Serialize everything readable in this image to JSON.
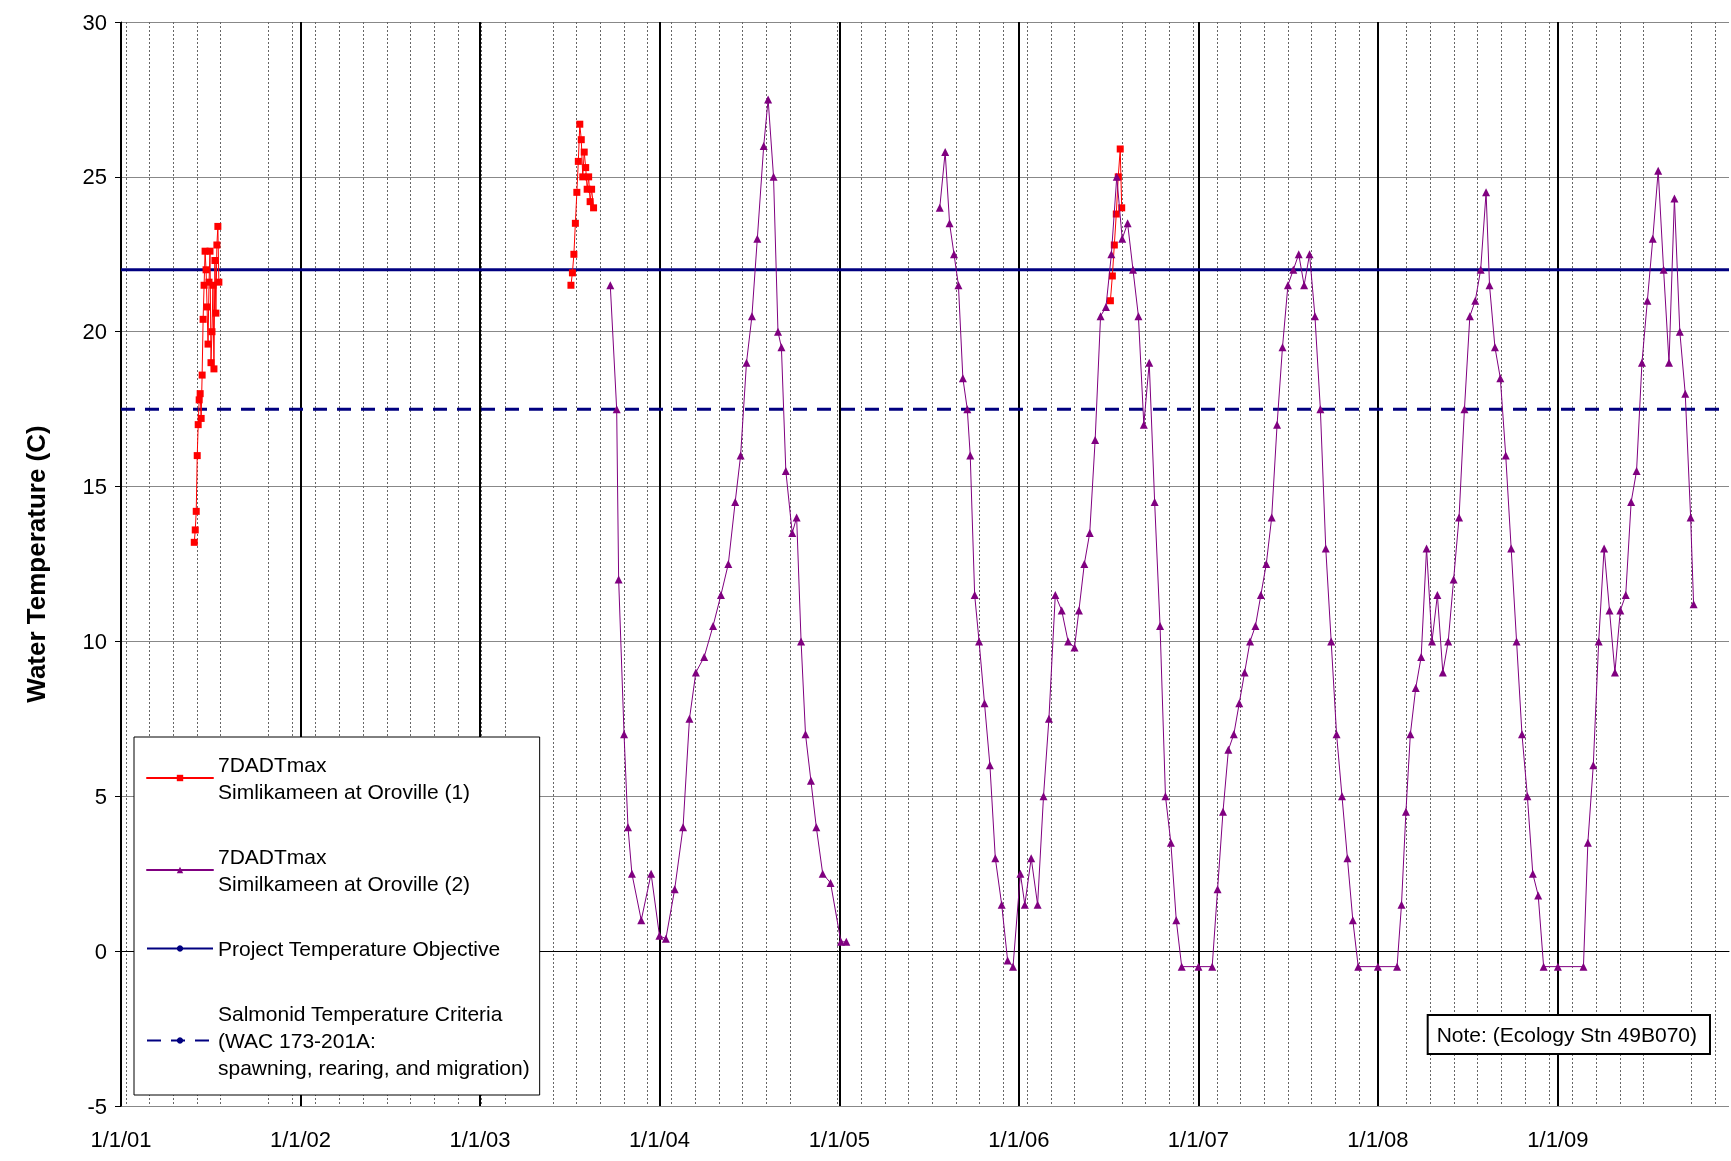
{
  "chart_data": {
    "type": "line",
    "ylabel": "Water Temperature (C)",
    "xlim": [
      "2001-01-01",
      "2009-12-15"
    ],
    "xticks": [
      {
        "value": "2001-01-01",
        "label": "1/1/01"
      },
      {
        "value": "2002-01-01",
        "label": "1/1/02"
      },
      {
        "value": "2003-01-01",
        "label": "1/1/03"
      },
      {
        "value": "2004-01-01",
        "label": "1/1/04"
      },
      {
        "value": "2005-01-01",
        "label": "1/1/05"
      },
      {
        "value": "2006-01-01",
        "label": "1/1/06"
      },
      {
        "value": "2007-01-01",
        "label": "1/1/07"
      },
      {
        "value": "2008-01-01",
        "label": "1/1/08"
      },
      {
        "value": "2009-01-01",
        "label": "1/1/09"
      }
    ],
    "ylim": [
      -5,
      30
    ],
    "yticks": [
      -5,
      0,
      5,
      10,
      15,
      20,
      25,
      30
    ],
    "grid": true,
    "legend": "bottom left",
    "series": [
      {
        "name": "7DADTmax\nSimlikameen at Oroville (1)",
        "color": "#ff0000",
        "marker": "square",
        "x": [
          "2001-05-30",
          "2001-06-01",
          "2001-06-03",
          "2001-06-05",
          "2001-06-07",
          "2001-06-09",
          "2001-06-11",
          "2001-06-13",
          "2001-06-15",
          "2001-06-17",
          "2001-06-19",
          "2001-06-21",
          "2001-06-23",
          "2001-06-25",
          "2001-06-27",
          "2001-06-29",
          "2001-07-01",
          "2001-07-03",
          "2001-07-05",
          "2001-07-07",
          "2001-07-09",
          "2001-07-11",
          "2001-07-13",
          "2001-07-15",
          "2001-07-17",
          "2001-07-19",
          "2002-06-01",
          "2003-07-05",
          "2003-07-08",
          "2003-07-11",
          "2003-07-14",
          "2003-07-17",
          "2003-07-20",
          "2003-07-23",
          "2003-07-26",
          "2003-07-29",
          "2003-08-01",
          "2003-08-04",
          "2003-08-07",
          "2003-08-10",
          "2003-08-13",
          "2003-08-16",
          "2003-08-20",
          "2005-01-01",
          "2006-07-06",
          "2006-07-10",
          "2006-07-14",
          "2006-07-18",
          "2006-07-22",
          "2006-07-26",
          "2006-07-29"
        ],
        "values": [
          13.2,
          13.6,
          14.2,
          16,
          17,
          17.8,
          18,
          17.2,
          18.6,
          20.4,
          21.5,
          22.6,
          22,
          20.8,
          19.6,
          21.6,
          22.6,
          19,
          20,
          21.5,
          18.8,
          22.3,
          20.6,
          22.8,
          23.4,
          21.6,
          null,
          21.5,
          21.9,
          22.5,
          23.5,
          24.5,
          25.5,
          26.7,
          26.2,
          25,
          25.8,
          25.3,
          24.6,
          25,
          24.2,
          24.6,
          24,
          null,
          21,
          21.8,
          22.8,
          23.8,
          25,
          25.9,
          24
        ]
      },
      {
        "name": "7DADTmax\nSimilkameen at Oroville (2)",
        "color": "#800080",
        "marker": "triangle",
        "x": [
          "2003-09-23",
          "2003-10-06",
          "2003-10-10",
          "2003-10-21",
          "2003-10-29",
          "2003-11-06",
          "2003-11-25",
          "2003-12-15",
          "2004-01-01",
          "2004-01-14",
          "2004-02-01",
          "2004-02-18",
          "2004-03-02",
          "2004-03-15",
          "2004-04-01",
          "2004-04-19",
          "2004-05-05",
          "2004-05-20",
          "2004-06-03",
          "2004-06-14",
          "2004-06-26",
          "2004-07-07",
          "2004-07-18",
          "2004-07-31",
          "2004-08-09",
          "2004-08-20",
          "2004-08-29",
          "2004-09-05",
          "2004-09-14",
          "2004-09-27",
          "2004-10-06",
          "2004-10-15",
          "2004-10-24",
          "2004-11-04",
          "2004-11-15",
          "2004-11-28",
          "2004-12-14",
          "2005-01-04",
          "2005-01-15",
          "2005-04-01",
          "2005-07-24",
          "2005-08-04",
          "2005-08-13",
          "2005-08-22",
          "2005-08-31",
          "2005-09-09",
          "2005-09-18",
          "2005-09-24",
          "2005-10-03",
          "2005-10-12",
          "2005-10-23",
          "2005-11-03",
          "2005-11-14",
          "2005-11-27",
          "2005-12-09",
          "2005-12-20",
          "2006-01-04",
          "2006-01-13",
          "2006-01-26",
          "2006-02-08",
          "2006-02-20",
          "2006-03-03",
          "2006-03-16",
          "2006-03-29",
          "2006-04-11",
          "2006-04-24",
          "2006-05-03",
          "2006-05-14",
          "2006-05-25",
          "2006-06-05",
          "2006-06-16",
          "2006-06-27",
          "2006-07-08",
          "2006-07-19",
          "2006-07-30",
          "2006-08-10",
          "2006-08-21",
          "2006-09-01",
          "2006-09-12",
          "2006-09-23",
          "2006-10-04",
          "2006-10-15",
          "2006-10-26",
          "2006-11-06",
          "2006-11-17",
          "2006-11-28",
          "2007-01-01",
          "2007-01-29",
          "2007-02-09",
          "2007-02-20",
          "2007-03-03",
          "2007-03-14",
          "2007-03-25",
          "2007-04-05",
          "2007-04-16",
          "2007-04-27",
          "2007-05-08",
          "2007-05-19",
          "2007-05-30",
          "2007-06-10",
          "2007-06-21",
          "2007-07-02",
          "2007-07-13",
          "2007-07-24",
          "2007-08-04",
          "2007-08-15",
          "2007-08-26",
          "2007-09-06",
          "2007-09-17",
          "2007-09-28",
          "2007-10-09",
          "2007-10-20",
          "2007-10-31",
          "2007-11-11",
          "2007-11-22",
          "2008-01-01",
          "2008-02-09",
          "2008-02-18",
          "2008-02-27",
          "2008-03-07",
          "2008-03-18",
          "2008-03-29",
          "2008-04-09",
          "2008-04-20",
          "2008-05-01",
          "2008-05-12",
          "2008-05-23",
          "2008-06-03",
          "2008-06-14",
          "2008-06-25",
          "2008-07-06",
          "2008-07-17",
          "2008-07-28",
          "2008-08-08",
          "2008-08-15",
          "2008-08-26",
          "2008-09-06",
          "2008-09-17",
          "2008-09-28",
          "2008-10-09",
          "2008-10-20",
          "2008-10-31",
          "2008-11-11",
          "2008-11-22",
          "2008-12-03",
          "2009-01-01",
          "2009-02-22",
          "2009-03-03",
          "2009-03-14",
          "2009-03-25",
          "2009-04-05",
          "2009-04-16",
          "2009-04-27",
          "2009-05-08",
          "2009-05-19",
          "2009-05-30",
          "2009-06-10",
          "2009-06-21",
          "2009-07-02",
          "2009-07-13",
          "2009-07-24",
          "2009-08-04",
          "2009-08-15",
          "2009-08-26",
          "2009-09-06",
          "2009-09-17",
          "2009-09-28",
          "2009-10-04"
        ],
        "values": [
          21.5,
          17.5,
          12,
          7,
          4,
          2.5,
          1,
          2.5,
          0.5,
          0.4,
          2,
          4,
          7.5,
          9,
          9.5,
          10.5,
          11.5,
          12.5,
          14.5,
          16,
          19,
          20.5,
          23,
          26,
          27.5,
          25,
          20,
          19.5,
          15.5,
          13.5,
          14,
          10,
          7,
          5.5,
          4,
          2.5,
          2.2,
          0.3,
          0.3,
          null,
          24,
          25.8,
          23.5,
          22.5,
          21.5,
          18.5,
          17.5,
          16,
          11.5,
          10,
          8,
          6,
          3,
          1.5,
          -0.3,
          -0.5,
          2.5,
          1.5,
          3,
          1.5,
          5,
          7.5,
          11.5,
          11,
          10,
          9.8,
          11,
          12.5,
          13.5,
          16.5,
          20.5,
          20.8,
          22.5,
          25,
          23,
          23.5,
          22,
          20.5,
          17,
          19,
          14.5,
          10.5,
          5,
          3.5,
          1,
          -0.5,
          -0.5,
          -0.5,
          2,
          4.5,
          6.5,
          7,
          8,
          9,
          10,
          10.5,
          11.5,
          12.5,
          14,
          17,
          19.5,
          21.5,
          22,
          22.5,
          21.5,
          22.5,
          20.5,
          17.5,
          13,
          10,
          7,
          5,
          3,
          1,
          -0.5,
          -0.5,
          -0.5,
          1.5,
          4.5,
          7,
          8.5,
          9.5,
          13,
          10,
          11.5,
          9,
          10,
          12,
          14,
          17.5,
          20.5,
          21,
          22,
          24.5,
          21.5,
          19.5,
          18.5,
          16,
          13,
          10,
          7,
          5,
          2.5,
          1.8,
          -0.5,
          -0.5,
          -0.5,
          3.5,
          6,
          10,
          13,
          11,
          9,
          11,
          11.5,
          14.5,
          15.5,
          19,
          21,
          23,
          25.2,
          22,
          19,
          24.3,
          20,
          18,
          14,
          11.2
        ]
      }
    ],
    "ref_lines": [
      {
        "axis": "y",
        "value": 22,
        "label": "Project Temperature Objective",
        "color": "#000080",
        "line_style": "solid"
      },
      {
        "axis": "y",
        "value": 17.5,
        "label": "Salmonid Temperature Criteria\n(WAC 173-201A:\nspawning, rearing, and migration)",
        "color": "#000080",
        "line_style": "dashed"
      }
    ],
    "annotations": [
      "Note: (Ecology Stn 49B070)"
    ]
  }
}
